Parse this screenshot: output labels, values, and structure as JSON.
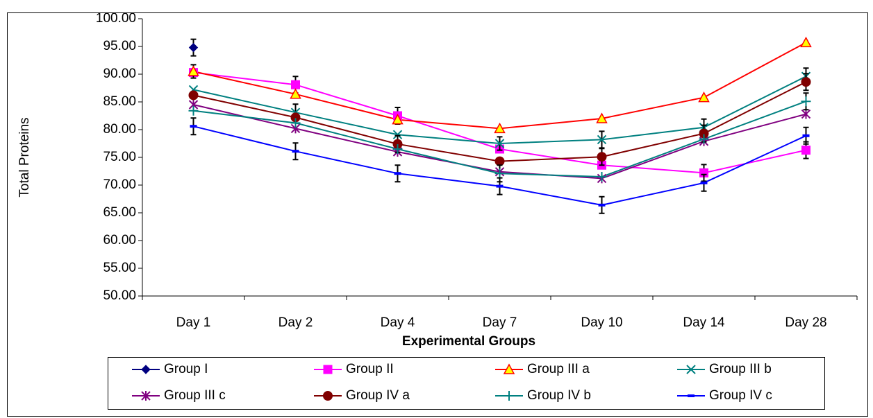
{
  "chart_data": {
    "type": "line",
    "xlabel": "Experimental Groups",
    "ylabel": "Total Proteins",
    "categories": [
      "Day 1",
      "Day 2",
      "Day 4",
      "Day 7",
      "Day 10",
      "Day 14",
      "Day 28"
    ],
    "ylim": [
      50,
      100
    ],
    "yticks": [
      {
        "value": 50,
        "label": "50.00"
      },
      {
        "value": 55,
        "label": "55.00"
      },
      {
        "value": 60,
        "label": "60.00"
      },
      {
        "value": 65,
        "label": "65.00"
      },
      {
        "value": 70,
        "label": "70.00"
      },
      {
        "value": 75,
        "label": "75.00"
      },
      {
        "value": 80,
        "label": "80.00"
      },
      {
        "value": 85,
        "label": "85.00"
      },
      {
        "value": 90,
        "label": "90.00"
      },
      {
        "value": 95,
        "label": "95.00"
      },
      {
        "value": 100,
        "label": "100.00"
      }
    ],
    "grid": false,
    "legend": "bottom",
    "series": [
      {
        "name": "Group I",
        "color": "#000080",
        "marker": "diamond",
        "values": [
          94.8,
          null,
          null,
          null,
          null,
          null,
          null
        ],
        "errors": [
          1.5,
          null,
          null,
          null,
          null,
          null,
          null
        ]
      },
      {
        "name": "Group II",
        "color": "#ff00ff",
        "marker": "square",
        "values": [
          90.3,
          88.1,
          82.5,
          76.5,
          73.6,
          72.2,
          76.3
        ],
        "errors": [
          null,
          1.5,
          1.5,
          null,
          null,
          1.5,
          1.5
        ]
      },
      {
        "name": "Group III a",
        "color": "#ff0000",
        "fill": "#ffff00",
        "marker": "triangle",
        "values": [
          90.5,
          86.4,
          81.8,
          80.2,
          82.0,
          85.8,
          95.7
        ],
        "errors": [
          1.2,
          null,
          null,
          null,
          null,
          null,
          null
        ]
      },
      {
        "name": "Group III b",
        "color": "#008080",
        "marker": "x",
        "values": [
          87.2,
          83.1,
          79.1,
          77.5,
          78.2,
          80.4,
          89.6
        ],
        "errors": [
          null,
          1.5,
          null,
          1.2,
          1.5,
          1.5,
          1.5
        ]
      },
      {
        "name": "Group III c",
        "color": "#800080",
        "marker": "star",
        "values": [
          84.5,
          80.2,
          76.0,
          72.4,
          71.2,
          77.9,
          82.8
        ],
        "errors": [
          null,
          null,
          null,
          null,
          null,
          null,
          null
        ]
      },
      {
        "name": "Group IV a",
        "color": "#800000",
        "marker": "circle",
        "values": [
          86.2,
          82.2,
          77.4,
          74.3,
          75.1,
          79.3,
          88.6
        ],
        "errors": [
          null,
          null,
          1.5,
          null,
          1.5,
          1.5,
          1.5
        ]
      },
      {
        "name": "Group IV b",
        "color": "#008080",
        "marker": "plus",
        "values": [
          83.4,
          81.2,
          76.5,
          72.1,
          71.5,
          78.3,
          85.1
        ],
        "errors": [
          null,
          null,
          null,
          1.5,
          null,
          null,
          1.5
        ]
      },
      {
        "name": "Group IV c",
        "color": "#0000ff",
        "marker": "dash",
        "values": [
          80.6,
          76.1,
          72.1,
          69.8,
          66.4,
          70.4,
          78.9
        ],
        "errors": [
          1.5,
          1.5,
          1.5,
          1.5,
          1.5,
          1.5,
          1.5
        ]
      }
    ]
  }
}
